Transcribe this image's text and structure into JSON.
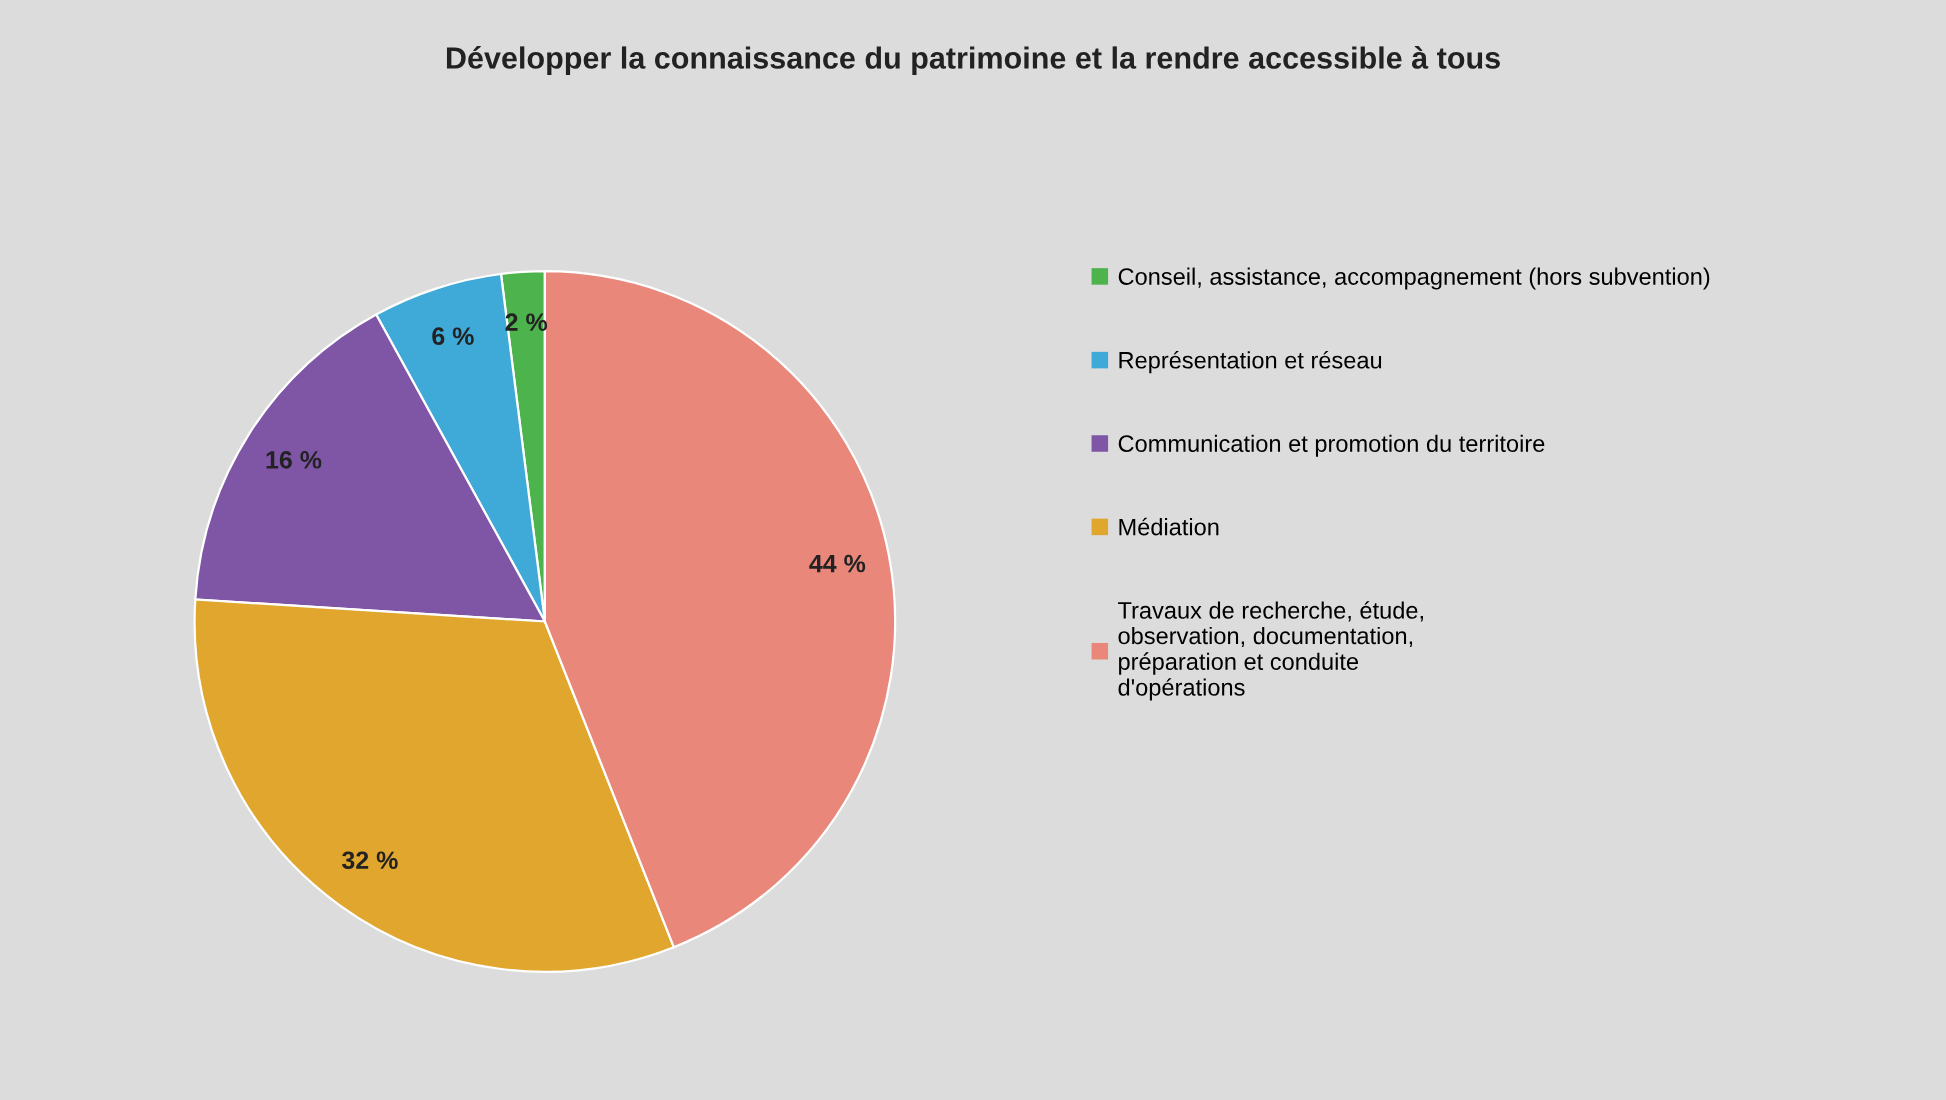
{
  "chart_data": {
    "type": "pie",
    "title": "Développer la connaissance du patrimoine et la rendre accessible à tous",
    "categories": [
      "Conseil, assistance, accompagnement (hors subvention)",
      "Représentation et réseau",
      "Communication et promotion du territoire",
      "Médiation",
      "Travaux de recherche, étude,\nobservation, documentation,\npréparation et conduite\nd'opérations"
    ],
    "values": [
      2,
      6,
      16,
      32,
      44
    ],
    "colors": [
      "#4db34d",
      "#3fa9d8",
      "#7f55a6",
      "#e0a62e",
      "#e8877a"
    ],
    "value_labels": [
      "2 %",
      "6 %",
      "16 %",
      "32 %",
      "44 %"
    ],
    "legend": "right"
  }
}
